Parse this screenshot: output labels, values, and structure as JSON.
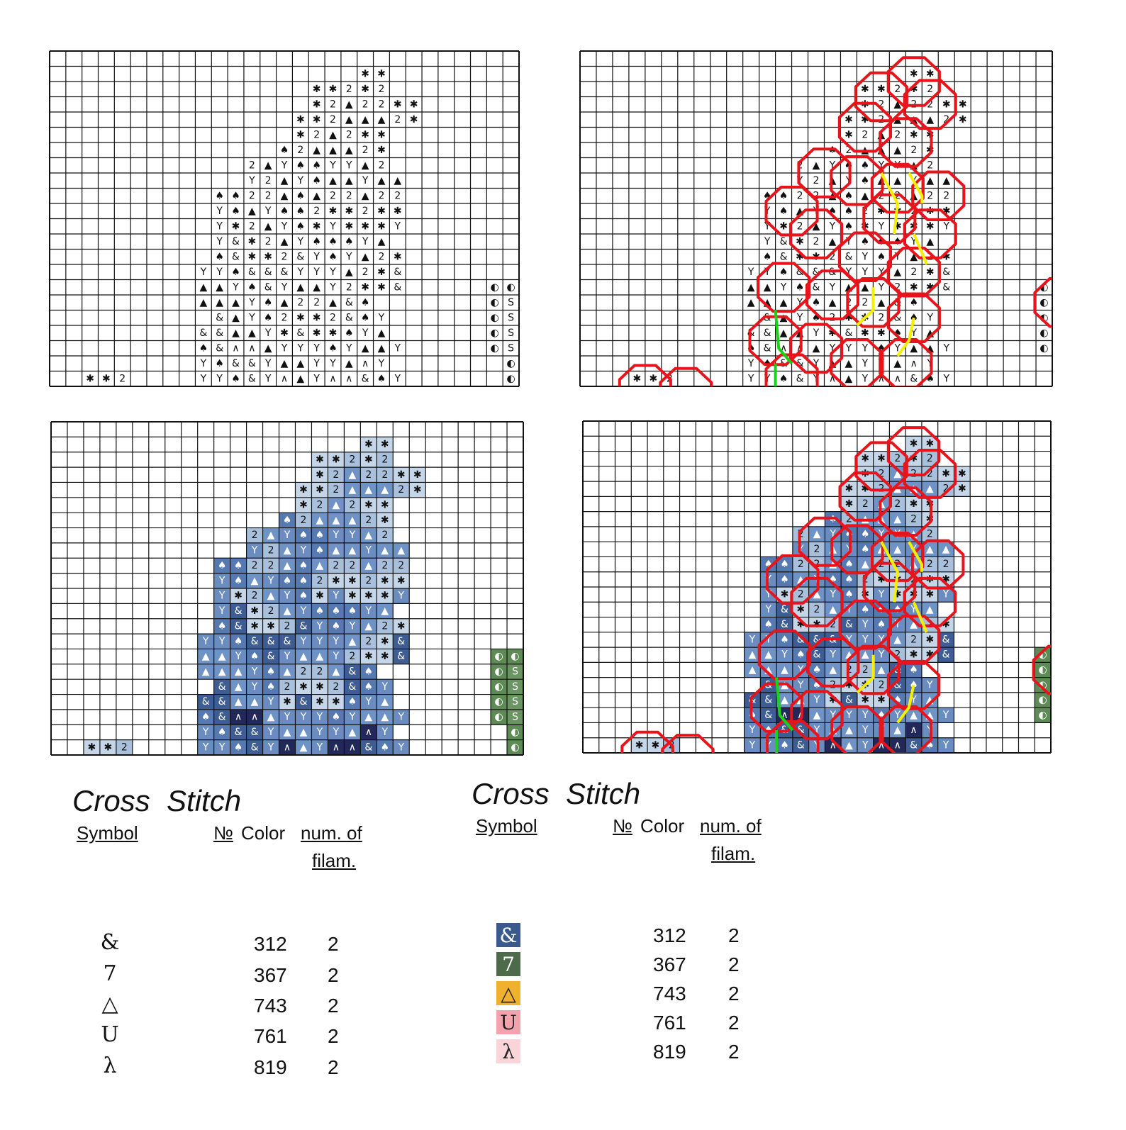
{
  "pattern": [
    [
      null,
      null,
      null,
      null,
      null,
      null,
      null,
      null,
      null,
      null,
      null,
      null,
      null,
      null,
      null,
      null,
      null,
      null,
      null,
      "✱",
      "✱"
    ],
    [
      null,
      null,
      null,
      null,
      null,
      null,
      null,
      null,
      null,
      null,
      null,
      null,
      null,
      null,
      null,
      null,
      "✱",
      "✱",
      "2",
      "✱",
      "2"
    ],
    [
      null,
      null,
      null,
      null,
      null,
      null,
      null,
      null,
      null,
      null,
      null,
      null,
      null,
      null,
      null,
      null,
      "✱",
      "2",
      "▲",
      "2",
      "2",
      "✱",
      "✱"
    ],
    [
      null,
      null,
      null,
      null,
      null,
      null,
      null,
      null,
      null,
      null,
      null,
      null,
      null,
      null,
      null,
      "✱",
      "✱",
      "2",
      "▲",
      "▲",
      "▲",
      "2",
      "✱"
    ],
    [
      null,
      null,
      null,
      null,
      null,
      null,
      null,
      null,
      null,
      null,
      null,
      null,
      null,
      null,
      null,
      "✱",
      "2",
      "▲",
      "2",
      "✱",
      "✱"
    ],
    [
      null,
      null,
      null,
      null,
      null,
      null,
      null,
      null,
      null,
      null,
      null,
      null,
      null,
      null,
      "♠",
      "2",
      "▲",
      "▲",
      "▲",
      "2",
      "✱"
    ],
    [
      null,
      null,
      null,
      null,
      null,
      null,
      null,
      null,
      null,
      null,
      null,
      null,
      "2",
      "▲",
      "Y",
      "♠",
      "♠",
      "Y",
      "Y",
      "▲",
      "2"
    ],
    [
      null,
      null,
      null,
      null,
      null,
      null,
      null,
      null,
      null,
      null,
      null,
      null,
      "Y",
      "2",
      "▲",
      "Y",
      "♠",
      "▲",
      "▲",
      "Y",
      "▲",
      "▲"
    ],
    [
      null,
      null,
      null,
      null,
      null,
      null,
      null,
      null,
      null,
      null,
      "♠",
      "♠",
      "2",
      "2",
      "▲",
      "♠",
      "▲",
      "2",
      "2",
      "▲",
      "2",
      "2"
    ],
    [
      null,
      null,
      null,
      null,
      null,
      null,
      null,
      null,
      null,
      null,
      "Y",
      "♠",
      "▲",
      "Y",
      "♠",
      "♠",
      "2",
      "✱",
      "✱",
      "2",
      "✱",
      "✱"
    ],
    [
      null,
      null,
      null,
      null,
      null,
      null,
      null,
      null,
      null,
      null,
      "Y",
      "✱",
      "2",
      "▲",
      "Y",
      "♠",
      "✱",
      "Y",
      "✱",
      "✱",
      "✱",
      "Y"
    ],
    [
      null,
      null,
      null,
      null,
      null,
      null,
      null,
      null,
      null,
      null,
      "Y",
      "&",
      "✱",
      "2",
      "▲",
      "Y",
      "♠",
      "♠",
      "♠",
      "Y",
      "▲"
    ],
    [
      null,
      null,
      null,
      null,
      null,
      null,
      null,
      null,
      null,
      null,
      "♠",
      "&",
      "✱",
      "✱",
      "2",
      "&",
      "Y",
      "♠",
      "Y",
      "▲",
      "2",
      "✱"
    ],
    [
      null,
      null,
      null,
      null,
      null,
      null,
      null,
      null,
      null,
      "Y",
      "Y",
      "♠",
      "&",
      "&",
      "&",
      "Y",
      "Y",
      "Y",
      "▲",
      "2",
      "✱",
      "&"
    ],
    [
      null,
      null,
      null,
      null,
      null,
      null,
      null,
      null,
      null,
      "▲",
      "▲",
      "Y",
      "♠",
      "&",
      "Y",
      "▲",
      "▲",
      "Y",
      "2",
      "✱",
      "✱",
      "&",
      null,
      null,
      null,
      null,
      null,
      "◐",
      "◐"
    ],
    [
      null,
      null,
      null,
      null,
      null,
      null,
      null,
      null,
      null,
      "▲",
      "▲",
      "▲",
      "Y",
      "♠",
      "▲",
      "2",
      "2",
      "▲",
      "&",
      "♠",
      null,
      null,
      null,
      null,
      null,
      null,
      null,
      "◐",
      "S"
    ],
    [
      null,
      null,
      null,
      null,
      null,
      null,
      null,
      null,
      null,
      null,
      "&",
      "▲",
      "Y",
      "♠",
      "2",
      "✱",
      "✱",
      "2",
      "&",
      "♠",
      "Y",
      null,
      null,
      null,
      null,
      null,
      null,
      "◐",
      "S"
    ],
    [
      null,
      null,
      null,
      null,
      null,
      null,
      null,
      null,
      null,
      "&",
      "&",
      "▲",
      "▲",
      "Y",
      "✱",
      "&",
      "✱",
      "✱",
      "♠",
      "Y",
      "▲",
      null,
      null,
      null,
      null,
      null,
      null,
      "◐",
      "S"
    ],
    [
      null,
      null,
      null,
      null,
      null,
      null,
      null,
      null,
      null,
      "♠",
      "&",
      "∧",
      "∧",
      "▲",
      "Y",
      "Y",
      "Y",
      "♠",
      "Y",
      "▲",
      "▲",
      "Y",
      null,
      null,
      null,
      null,
      null,
      "◐",
      "S"
    ],
    [
      null,
      null,
      null,
      null,
      null,
      null,
      null,
      null,
      null,
      "Y",
      "♠",
      "&",
      "&",
      "Y",
      "▲",
      "▲",
      "Y",
      "Y",
      "▲",
      "∧",
      "Y",
      null,
      null,
      null,
      null,
      null,
      null,
      null,
      "◐"
    ],
    [
      null,
      null,
      "✱",
      "✱",
      "2",
      null,
      null,
      null,
      null,
      "Y",
      "Y",
      "♠",
      "&",
      "Y",
      "∧",
      "▲",
      "Y",
      "∧",
      "∧",
      "&",
      "♠",
      "Y",
      null,
      null,
      null,
      null,
      null,
      null,
      "◐"
    ]
  ],
  "symbol_colors": {
    "✱": "#c5d6e8",
    "2": "#a8c0dc",
    "▲": "#6f93c6",
    "Y": "#6a8cc0",
    "♠": "#5579b0",
    "&": "#3e5d95",
    "∧": "#22295a",
    "◐": "#5d8a55",
    "S": "#6b9463"
  },
  "legends": [
    {
      "title": "Cross  Stitch",
      "symbol_header": "Symbol",
      "number_sign": "№",
      "color_header": "Color",
      "filaments_header_1": "num. of",
      "filaments_header_2": "filam.",
      "rows": [
        {
          "symbol": "&",
          "color": 312,
          "filaments": 2
        },
        {
          "symbol": "7",
          "color": 367,
          "filaments": 2
        },
        {
          "symbol": "△",
          "color": 743,
          "filaments": 2
        },
        {
          "symbol": "U",
          "color": 761,
          "filaments": 2
        },
        {
          "symbol": "λ",
          "color": 819,
          "filaments": 2
        }
      ]
    },
    {
      "title": "Cross  Stitch",
      "symbol_header": "Symbol",
      "number_sign": "№",
      "color_header": "Color",
      "filaments_header_1": "num. of",
      "filaments_header_2": "filam.",
      "rows": [
        {
          "symbol": "&",
          "color": 312,
          "filaments": 2,
          "swatch": "#3b5a8c"
        },
        {
          "symbol": "7",
          "color": 367,
          "filaments": 2,
          "swatch": "#4d6b4a"
        },
        {
          "symbol": "△",
          "color": 743,
          "filaments": 2,
          "swatch": "#f0b030"
        },
        {
          "symbol": "U",
          "color": 761,
          "filaments": 2,
          "swatch": "#f2a3ae"
        },
        {
          "symbol": "λ",
          "color": 819,
          "filaments": 2,
          "swatch": "#f9d5d9"
        }
      ]
    }
  ]
}
